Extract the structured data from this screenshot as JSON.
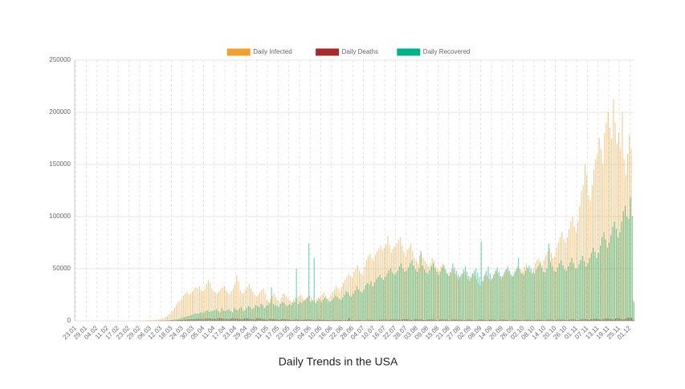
{
  "chart_data": {
    "type": "bar",
    "title": "Daily Trends in the USA",
    "legend": "top",
    "grid": true,
    "categories": [
      "23.01",
      null,
      null,
      null,
      null,
      null,
      "29.01",
      null,
      null,
      null,
      null,
      null,
      "04.02",
      null,
      null,
      null,
      null,
      null,
      "11.02",
      null,
      null,
      null,
      null,
      null,
      "17.02",
      null,
      null,
      null,
      null,
      null,
      "23.02",
      null,
      null,
      null,
      null,
      null,
      "29.02",
      null,
      null,
      null,
      null,
      null,
      "06.03",
      null,
      null,
      null,
      null,
      null,
      "12.03",
      null,
      null,
      null,
      null,
      null,
      "18.03",
      null,
      null,
      null,
      null,
      null,
      "24.03",
      null,
      null,
      null,
      null,
      null,
      "30.03",
      null,
      null,
      null,
      null,
      null,
      "05.04",
      null,
      null,
      null,
      null,
      null,
      "11.04",
      null,
      null,
      null,
      null,
      null,
      "17.04",
      null,
      null,
      null,
      null,
      null,
      "23.04",
      null,
      null,
      null,
      null,
      null,
      "29.04",
      null,
      null,
      null,
      null,
      null,
      "05.05",
      null,
      null,
      null,
      null,
      null,
      "11.05",
      null,
      null,
      null,
      null,
      null,
      "17.05",
      null,
      null,
      null,
      null,
      null,
      "23.05",
      null,
      null,
      null,
      null,
      null,
      "29.05",
      null,
      null,
      null,
      null,
      null,
      "04.06",
      null,
      null,
      null,
      null,
      null,
      "10.06",
      null,
      null,
      null,
      null,
      null,
      "16.06",
      null,
      null,
      null,
      null,
      null,
      "22.06",
      null,
      null,
      null,
      null,
      null,
      "28.06",
      null,
      null,
      null,
      null,
      null,
      "04.07",
      null,
      null,
      null,
      null,
      null,
      "10.07",
      null,
      null,
      null,
      null,
      null,
      "16.07",
      null,
      null,
      null,
      null,
      null,
      "22.07",
      null,
      null,
      null,
      null,
      null,
      "28.07",
      null,
      null,
      null,
      null,
      null,
      "03.08",
      null,
      null,
      null,
      null,
      null,
      "09.08",
      null,
      null,
      null,
      null,
      null,
      "15.08",
      null,
      null,
      null,
      null,
      null,
      "21.08",
      null,
      null,
      null,
      null,
      null,
      "27.08",
      null,
      null,
      null,
      null,
      null,
      "02.09",
      null,
      null,
      null,
      null,
      null,
      "08.09",
      null,
      null,
      null,
      null,
      null,
      "14.09",
      null,
      null,
      null,
      null,
      null,
      "20.09",
      null,
      null,
      null,
      null,
      null,
      "26.09",
      null,
      null,
      null,
      null,
      null,
      "02.10",
      null,
      null,
      null,
      null,
      null,
      "08.10",
      null,
      null,
      null,
      null,
      null,
      "14.10",
      null,
      null,
      null,
      null,
      null,
      "20.10",
      null,
      null,
      null,
      null,
      null,
      "26.10",
      null,
      null,
      null,
      null,
      null,
      "01.11",
      null,
      null,
      null,
      null,
      null,
      "07.11",
      null,
      null,
      null,
      null,
      null,
      "13.11",
      null,
      null,
      null,
      null,
      null,
      "19.11",
      null,
      null,
      null,
      null,
      null,
      "25.11",
      null,
      null,
      null,
      null,
      null,
      "01.12",
      null,
      null
    ],
    "ylim": [
      0,
      250000
    ],
    "yticks": [
      0,
      50000,
      100000,
      150000,
      200000,
      250000
    ],
    "series": [
      {
        "name": "Daily Infected",
        "color": "#f0a030",
        "values": [
          0,
          0,
          0,
          0,
          0,
          0,
          0,
          0,
          0,
          0,
          0,
          0,
          0,
          0,
          0,
          0,
          0,
          0,
          0,
          0,
          0,
          0,
          0,
          0,
          0,
          0,
          0,
          0,
          0,
          0,
          0,
          0,
          0,
          10,
          20,
          20,
          30,
          50,
          80,
          100,
          150,
          200,
          250,
          350,
          450,
          600,
          900,
          1200,
          1500,
          2000,
          2500,
          3500,
          4500,
          6000,
          7500,
          9000,
          12000,
          15000,
          18000,
          19000,
          21000,
          24000,
          26000,
          28000,
          25000,
          26000,
          28000,
          30000,
          32000,
          31000,
          33000,
          29000,
          28000,
          30000,
          35000,
          39000,
          36000,
          31000,
          28000,
          27000,
          26000,
          28000,
          30000,
          32000,
          33000,
          29000,
          27000,
          25000,
          28000,
          31000,
          35000,
          44000,
          38000,
          29000,
          26000,
          27000,
          30000,
          32000,
          35000,
          31000,
          28000,
          25000,
          23000,
          25000,
          27000,
          29000,
          31000,
          26000,
          20000,
          18000,
          21000,
          24000,
          26000,
          23000,
          20000,
          18000,
          22000,
          26000,
          25000,
          23000,
          21000,
          19000,
          18000,
          20000,
          22000,
          21000,
          23000,
          25000,
          22000,
          20000,
          21000,
          23000,
          24000,
          22000,
          19000,
          18000,
          21000,
          22000,
          23000,
          25000,
          27000,
          24000,
          21000,
          22000,
          25000,
          27000,
          30000,
          33000,
          31000,
          28000,
          32000,
          36000,
          39000,
          42000,
          45000,
          43000,
          41000,
          47000,
          50000,
          53000,
          48000,
          45000,
          44000,
          52000,
          58000,
          62000,
          64000,
          60000,
          58000,
          63000,
          66000,
          69000,
          72000,
          68000,
          70000,
          73000,
          81000,
          72000,
          65000,
          69000,
          71000,
          74000,
          78000,
          80000,
          72000,
          66000,
          62000,
          68000,
          70000,
          74000,
          67000,
          60000,
          58000,
          55000,
          62000,
          64000,
          60000,
          57000,
          54000,
          52000,
          55000,
          60000,
          58000,
          52000,
          50000,
          48000,
          52000,
          55000,
          50000,
          46000,
          44000,
          47000,
          50000,
          49000,
          45000,
          42000,
          40000,
          43000,
          45000,
          47000,
          44000,
          40000,
          38000,
          42000,
          45000,
          43000,
          40000,
          36000,
          34000,
          38000,
          42000,
          46000,
          43000,
          40000,
          38000,
          41000,
          45000,
          48000,
          45000,
          42000,
          40000,
          44000,
          48000,
          50000,
          47000,
          44000,
          42000,
          45000,
          48000,
          52000,
          50000,
          46000,
          48000,
          52000,
          55000,
          50000,
          47000,
          45000,
          50000,
          55000,
          58000,
          60000,
          57000,
          53000,
          58000,
          63000,
          66000,
          70000,
          65000,
          60000,
          62000,
          70000,
          75000,
          80000,
          85000,
          78000,
          75000,
          80000,
          88000,
          95000,
          100000,
          90000,
          85000,
          95000,
          110000,
          125000,
          130000,
          150000,
          140000,
          120000,
          115000,
          130000,
          145000,
          155000,
          160000,
          175000,
          165000,
          150000,
          180000,
          190000,
          200000,
          185000,
          175000,
          212000,
          190000,
          170000,
          180000,
          165000,
          200000,
          155000,
          140000,
          160000,
          178000,
          165000,
          20000
        ]
      },
      {
        "name": "Daily Deaths",
        "color": "#a52a2a",
        "values": [
          0,
          0,
          0,
          0,
          0,
          0,
          0,
          0,
          0,
          0,
          0,
          0,
          0,
          0,
          0,
          0,
          0,
          0,
          0,
          0,
          0,
          0,
          0,
          0,
          0,
          0,
          0,
          0,
          0,
          0,
          0,
          0,
          0,
          0,
          0,
          0,
          0,
          0,
          0,
          0,
          1,
          2,
          3,
          5,
          7,
          10,
          15,
          20,
          30,
          40,
          50,
          70,
          100,
          150,
          200,
          250,
          300,
          400,
          500,
          600,
          700,
          900,
          1000,
          1100,
          1200,
          1300,
          1400,
          1500,
          1700,
          1900,
          2000,
          1800,
          1600,
          1900,
          2100,
          2200,
          2000,
          1800,
          1700,
          1600,
          2300,
          2600,
          2200,
          1900,
          1800,
          1700,
          1500,
          1600,
          2400,
          2200,
          2000,
          1900,
          1600,
          1400,
          1300,
          2100,
          2300,
          2100,
          1800,
          1600,
          1200,
          1100,
          2200,
          2400,
          2000,
          1800,
          1500,
          1000,
          900,
          1600,
          1700,
          1600,
          1500,
          1200,
          900,
          800,
          1500,
          1400,
          1300,
          1100,
          1000,
          700,
          600,
          800,
          1200,
          1100,
          1000,
          800,
          700,
          900,
          1000,
          1000,
          1100,
          900,
          600,
          500,
          900,
          1000,
          900,
          800,
          800,
          700,
          600,
          400,
          400,
          800,
          700,
          700,
          650,
          600,
          500,
          400,
          800,
          800,
          2400,
          650,
          500,
          400,
          600,
          700,
          750,
          500,
          300,
          400,
          900,
          900,
          850,
          800,
          800,
          500,
          450,
          900,
          1000,
          950,
          950,
          900,
          500,
          1000,
          1100,
          1150,
          1100,
          1000,
          1000,
          500,
          1300,
          1400,
          1300,
          1250,
          1100,
          650,
          500,
          1350,
          1300,
          1200,
          1150,
          1100,
          650,
          500,
          1100,
          1200,
          1150,
          1100,
          1000,
          500,
          400,
          1100,
          1300,
          1100,
          1050,
          1000,
          400,
          400,
          1150,
          1200,
          1000,
          950,
          950,
          900,
          500,
          500,
          1000,
          1050,
          1000,
          950,
          450,
          300,
          400,
          1200,
          1000,
          900,
          800,
          350,
          400,
          1000,
          950,
          850,
          800,
          300,
          350,
          900,
          1000,
          950,
          800,
          700,
          300,
          400,
          700,
          900,
          850,
          800,
          700,
          300,
          350,
          800,
          950,
          900,
          800,
          400,
          500,
          800,
          900,
          850,
          850,
          600,
          400,
          800,
          1000,
          1000,
          1100,
          500,
          500,
          900,
          1100,
          1050,
          1000,
          1000,
          500,
          600,
          1200,
          1100,
          1100,
          1000,
          500,
          600,
          1100,
          1200,
          1500,
          1600,
          1200,
          700,
          1400,
          1500,
          1700,
          2000,
          1400,
          1300,
          1000,
          1500,
          1900,
          2000,
          2000,
          1900,
          1300,
          900,
          2100,
          2300,
          2400,
          1300,
          1200,
          1400,
          2600,
          2800,
          2700,
          2900,
          1000
        ]
      },
      {
        "name": "Daily Recovered",
        "color": "#00b386",
        "values": [
          0,
          0,
          0,
          0,
          0,
          0,
          0,
          0,
          0,
          0,
          0,
          0,
          0,
          0,
          0,
          0,
          0,
          0,
          0,
          0,
          0,
          0,
          0,
          0,
          0,
          0,
          0,
          0,
          0,
          0,
          0,
          0,
          0,
          0,
          0,
          0,
          0,
          0,
          0,
          0,
          0,
          0,
          0,
          0,
          0,
          0,
          0,
          50,
          100,
          100,
          200,
          300,
          400,
          500,
          800,
          1000,
          1200,
          1500,
          2000,
          2500,
          3000,
          3500,
          4000,
          4500,
          5000,
          5500,
          6000,
          7000,
          6500,
          7000,
          8000,
          7500,
          8000,
          9000,
          10000,
          8500,
          9000,
          9500,
          10000,
          11000,
          9000,
          8000,
          12000,
          10000,
          9000,
          10000,
          11000,
          9000,
          8000,
          12000,
          11000,
          10000,
          12000,
          13000,
          9000,
          10000,
          12000,
          14000,
          13000,
          11000,
          12000,
          15000,
          14000,
          13000,
          16000,
          15000,
          12000,
          14000,
          15000,
          17000,
          32000,
          16000,
          15000,
          14000,
          13000,
          16000,
          18000,
          17000,
          15000,
          14000,
          16000,
          15000,
          17000,
          18000,
          50000,
          16000,
          18000,
          17000,
          19000,
          20000,
          22000,
          74000,
          18000,
          20000,
          60000,
          17000,
          19000,
          21000,
          18000,
          20000,
          22000,
          21000,
          19000,
          18000,
          20000,
          22000,
          24000,
          23000,
          21000,
          20000,
          22000,
          25000,
          28000,
          27000,
          24000,
          23000,
          26000,
          29000,
          33000,
          30000,
          28000,
          27000,
          30000,
          34000,
          36000,
          35000,
          38000,
          33000,
          37000,
          40000,
          42000,
          44000,
          41000,
          39000,
          42000,
          45000,
          48000,
          50000,
          46000,
          44000,
          45000,
          48000,
          52000,
          55000,
          50000,
          47000,
          48000,
          51000,
          55000,
          58000,
          53000,
          49000,
          47000,
          50000,
          67000,
          53000,
          49000,
          46000,
          45000,
          48000,
          52000,
          55000,
          50000,
          47000,
          44000,
          47000,
          51000,
          53000,
          49000,
          45000,
          43000,
          46000,
          55000,
          51000,
          48000,
          44000,
          42000,
          45000,
          49000,
          52000,
          47000,
          43000,
          41000,
          45000,
          48000,
          50000,
          46000,
          42000,
          76000,
          38000,
          44000,
          48000,
          52000,
          45000,
          40000,
          44000,
          48000,
          51000,
          47000,
          43000,
          42000,
          46000,
          49000,
          52000,
          48000,
          44000,
          43000,
          47000,
          50000,
          60000,
          49000,
          45000,
          44000,
          48000,
          51000,
          53000,
          50000,
          46000,
          45000,
          49000,
          52000,
          55000,
          51000,
          47000,
          46000,
          50000,
          74000,
          56000,
          52000,
          48000,
          47000,
          51000,
          55000,
          58000,
          53000,
          49000,
          48000,
          52000,
          56000,
          60000,
          55000,
          50000,
          50000,
          54000,
          58000,
          62000,
          57000,
          52000,
          55000,
          60000,
          65000,
          70000,
          66000,
          60000,
          65000,
          72000,
          80000,
          85000,
          78000,
          70000,
          75000,
          82000,
          90000,
          95000,
          88000,
          80000,
          85000,
          95000,
          105000,
          110000,
          100000,
          98000,
          118000,
          100000,
          18000
        ]
      }
    ]
  }
}
